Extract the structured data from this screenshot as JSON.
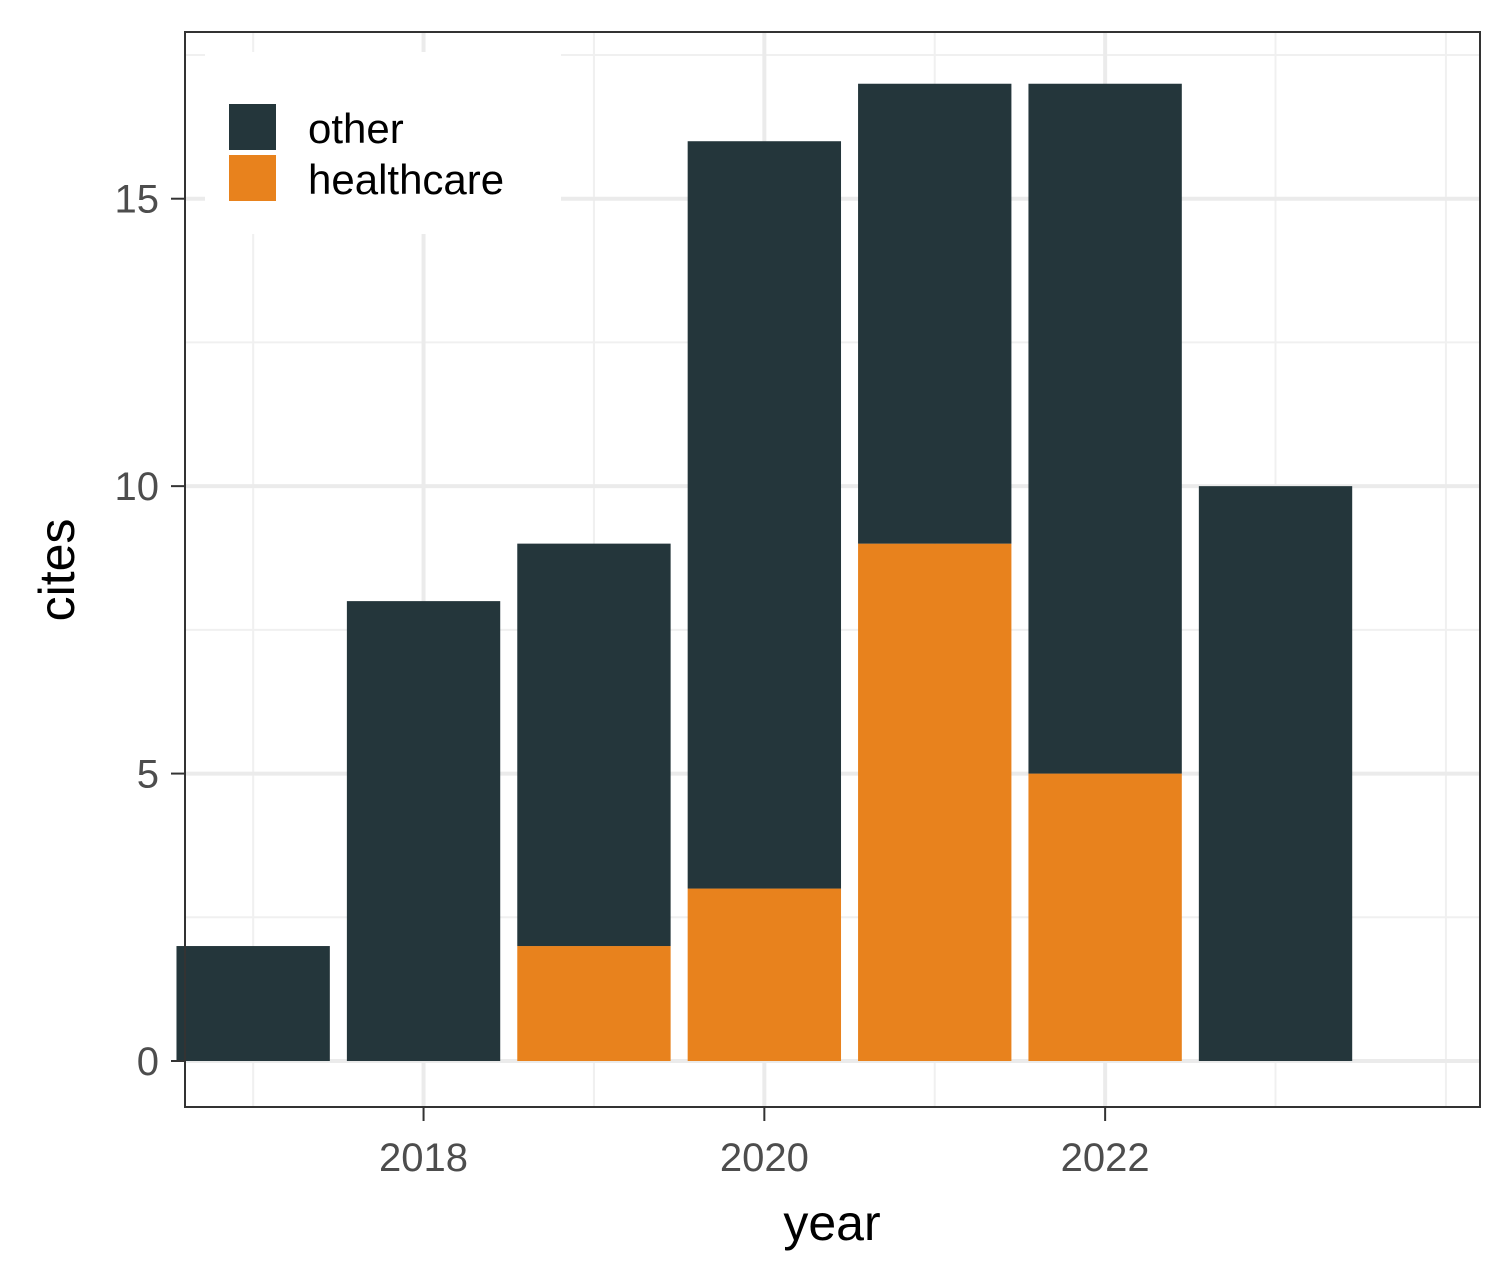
{
  "chart_data": {
    "type": "bar",
    "stacked": true,
    "x": [
      2017,
      2018,
      2019,
      2020,
      2021,
      2022,
      2023
    ],
    "series": [
      {
        "name": "healthcare",
        "values": [
          0,
          0,
          2,
          3,
          9,
          5,
          0
        ],
        "color": "#E8821D"
      },
      {
        "name": "other",
        "values": [
          2,
          8,
          7,
          13,
          8,
          12,
          10
        ],
        "color": "#24363B"
      }
    ],
    "xlabel": "year",
    "ylabel": "cites",
    "xticks": [
      "2018",
      "2020",
      "2022"
    ],
    "yticks": [
      "0",
      "5",
      "10",
      "15"
    ],
    "xlim": [
      2016.6,
      2024.2
    ],
    "ylim": [
      -0.8,
      17.9
    ],
    "grid": true,
    "legend_position": "top-left",
    "legend": [
      "other",
      "healthcare"
    ]
  }
}
